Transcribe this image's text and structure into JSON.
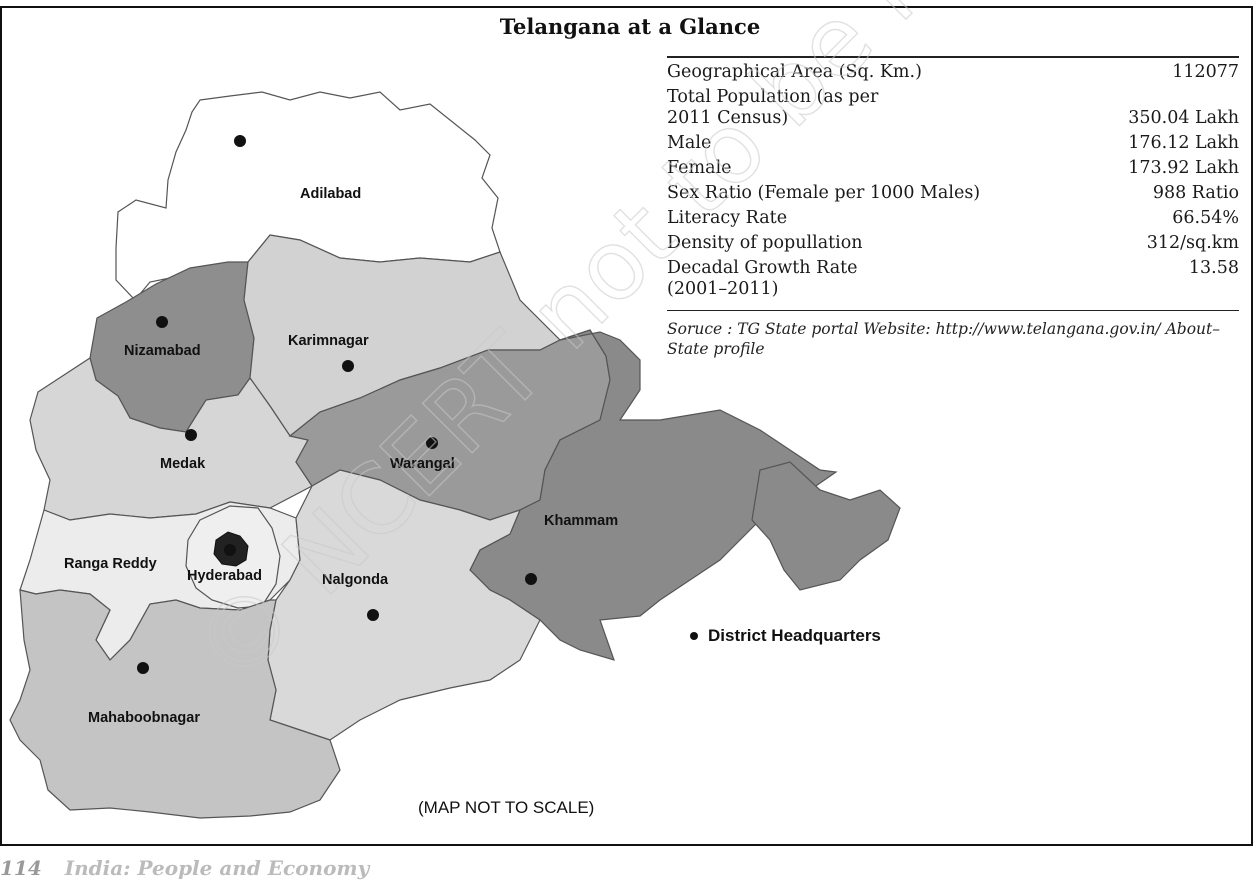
{
  "title": "Telangana at a Glance",
  "facts": [
    {
      "label": "Geographical Area (Sq. Km.)",
      "value": "112077"
    },
    {
      "label": "Total Population (as per\n2011 Census)",
      "value": "350.04 Lakh"
    },
    {
      "label": "Male",
      "value": "176.12 Lakh"
    },
    {
      "label": "Female",
      "value": "173.92 Lakh"
    },
    {
      "label": "Sex Ratio (Female per 1000 Males)",
      "value": "988 Ratio"
    },
    {
      "label": "Literacy Rate",
      "value": "66.54%"
    },
    {
      "label": "Density of popullation",
      "value": "312/sq.km"
    },
    {
      "label": "Decadal Growth Rate\n(2001–2011)",
      "value": "13.58"
    }
  ],
  "source": "Soruce : TG State portal Website: http://www.telangana.gov.in/ About–State profile",
  "districts": {
    "adilabad": "Adilabad",
    "nizamabad": "Nizamabad",
    "karimnagar": "Karimnagar",
    "medak": "Medak",
    "warangal": "Warangal",
    "khammam": "Khammam",
    "ranga_reddy": "Ranga Reddy",
    "hyderabad": "Hyderabad",
    "nalgonda": "Nalgonda",
    "mahaboobnagar": "Mahaboobnagar"
  },
  "legend": "District Headquarters",
  "scale_note": "(MAP NOT TO SCALE)",
  "footer": {
    "page": "114",
    "book": "India: People and Economy"
  },
  "watermark": "© NCERT not to be republished",
  "colors": {
    "adilabad": "#ffffff",
    "nizamabad": "#8e8e8e",
    "karimnagar": "#d2d2d2",
    "medak": "#d6d6d6",
    "warangal": "#9a9a9a",
    "khammam": "#8a8a8a",
    "ranga_reddy": "#ececec",
    "hyderabad": "#efefef",
    "nalgonda": "#d9d9d9",
    "mahaboobnagar": "#c4c4c4"
  }
}
